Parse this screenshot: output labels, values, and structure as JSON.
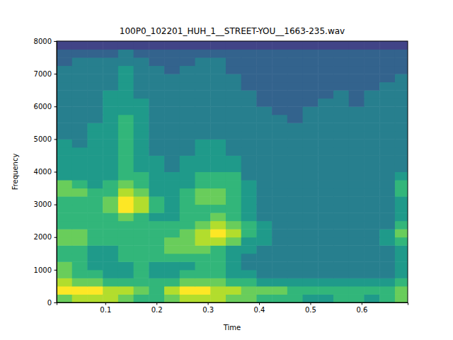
{
  "chart_data": {
    "type": "heatmap",
    "title": "100P0_102201_HUH_1__STREET-YOU__1663-235.wav",
    "x_label": "Time",
    "y_label": "Frequency",
    "xlim": [
      0.005,
      0.69
    ],
    "ylim": [
      0,
      8000
    ],
    "xticks": [
      0.1,
      0.2,
      0.3,
      0.4,
      0.5,
      0.6
    ],
    "yticks": [
      0,
      1000,
      2000,
      3000,
      4000,
      5000,
      6000,
      7000,
      8000
    ],
    "x": [
      0.02,
      0.05,
      0.08,
      0.11,
      0.14,
      0.17,
      0.2,
      0.23,
      0.26,
      0.29,
      0.32,
      0.35,
      0.38,
      0.41,
      0.44,
      0.47,
      0.5,
      0.53,
      0.56,
      0.59,
      0.62,
      0.65,
      0.68
    ],
    "y": [
      125,
      375,
      625,
      875,
      1125,
      1375,
      1625,
      1875,
      2125,
      2375,
      2625,
      2875,
      3125,
      3375,
      3625,
      3875,
      4125,
      4375,
      4625,
      4875,
      5125,
      5375,
      5625,
      5875,
      6125,
      6375,
      6625,
      6875,
      7125,
      7375,
      7625,
      7875
    ],
    "z": [
      [
        7,
        8,
        8,
        8,
        7,
        6,
        6,
        7,
        8,
        8,
        8,
        7,
        7,
        6,
        6,
        6,
        5,
        5,
        6,
        6,
        5,
        6,
        7
      ],
      [
        9,
        9,
        9,
        8,
        8,
        7,
        6,
        8,
        9,
        9,
        8,
        8,
        7,
        7,
        7,
        6,
        6,
        6,
        6,
        6,
        6,
        6,
        7
      ],
      [
        8,
        7,
        7,
        6,
        6,
        6,
        6,
        6,
        7,
        7,
        7,
        6,
        6,
        5,
        5,
        5,
        5,
        5,
        5,
        5,
        5,
        5,
        6
      ],
      [
        7,
        6,
        6,
        5,
        5,
        6,
        5,
        5,
        6,
        6,
        6,
        5,
        5,
        4,
        4,
        4,
        4,
        4,
        4,
        4,
        4,
        4,
        5
      ],
      [
        7,
        6,
        5,
        5,
        5,
        6,
        5,
        5,
        5,
        6,
        6,
        5,
        4,
        4,
        4,
        4,
        4,
        4,
        4,
        4,
        4,
        4,
        5
      ],
      [
        6,
        6,
        5,
        5,
        6,
        6,
        6,
        6,
        6,
        6,
        6,
        5,
        4,
        4,
        4,
        4,
        4,
        4,
        4,
        4,
        4,
        4,
        5
      ],
      [
        6,
        6,
        5,
        5,
        6,
        6,
        6,
        7,
        7,
        7,
        6,
        5,
        5,
        4,
        4,
        4,
        4,
        4,
        4,
        4,
        4,
        4,
        5
      ],
      [
        7,
        7,
        6,
        6,
        6,
        6,
        6,
        7,
        7,
        8,
        8,
        7,
        5,
        5,
        4,
        4,
        4,
        4,
        4,
        4,
        4,
        5,
        6
      ],
      [
        7,
        7,
        6,
        6,
        6,
        6,
        6,
        6,
        7,
        8,
        9,
        8,
        6,
        5,
        4,
        4,
        4,
        4,
        4,
        4,
        4,
        5,
        7
      ],
      [
        6,
        6,
        6,
        6,
        6,
        6,
        6,
        6,
        6,
        7,
        8,
        7,
        6,
        5,
        4,
        4,
        4,
        4,
        4,
        4,
        4,
        4,
        6
      ],
      [
        6,
        6,
        6,
        6,
        7,
        6,
        5,
        5,
        6,
        6,
        7,
        6,
        5,
        4,
        4,
        4,
        4,
        4,
        4,
        4,
        4,
        4,
        5
      ],
      [
        6,
        6,
        6,
        7,
        9,
        8,
        6,
        5,
        6,
        6,
        6,
        6,
        5,
        4,
        4,
        4,
        4,
        4,
        4,
        4,
        4,
        4,
        5
      ],
      [
        6,
        6,
        6,
        7,
        9,
        8,
        6,
        5,
        6,
        7,
        7,
        6,
        5,
        4,
        4,
        4,
        4,
        4,
        4,
        4,
        4,
        4,
        5
      ],
      [
        7,
        7,
        6,
        6,
        8,
        7,
        5,
        5,
        6,
        7,
        7,
        6,
        5,
        4,
        4,
        4,
        4,
        4,
        4,
        4,
        4,
        4,
        6
      ],
      [
        7,
        6,
        5,
        6,
        7,
        6,
        5,
        5,
        5,
        6,
        6,
        6,
        5,
        4,
        4,
        4,
        4,
        4,
        4,
        4,
        4,
        4,
        6
      ],
      [
        5,
        5,
        5,
        5,
        6,
        6,
        5,
        5,
        5,
        6,
        6,
        6,
        4,
        4,
        4,
        4,
        4,
        4,
        4,
        4,
        4,
        4,
        5
      ],
      [
        5,
        5,
        5,
        5,
        6,
        5,
        5,
        4,
        5,
        5,
        5,
        5,
        4,
        4,
        4,
        4,
        4,
        4,
        4,
        4,
        4,
        4,
        4
      ],
      [
        5,
        5,
        5,
        5,
        6,
        5,
        5,
        4,
        5,
        5,
        5,
        5,
        4,
        4,
        4,
        4,
        4,
        4,
        4,
        4,
        4,
        4,
        4
      ],
      [
        5,
        5,
        5,
        5,
        6,
        5,
        4,
        4,
        4,
        5,
        5,
        4,
        4,
        4,
        4,
        4,
        4,
        4,
        4,
        4,
        4,
        4,
        4
      ],
      [
        5,
        4,
        5,
        5,
        6,
        5,
        4,
        4,
        4,
        5,
        5,
        4,
        4,
        4,
        4,
        4,
        4,
        4,
        4,
        4,
        4,
        4,
        4
      ],
      [
        4,
        4,
        5,
        5,
        6,
        5,
        4,
        4,
        4,
        4,
        4,
        4,
        4,
        4,
        4,
        4,
        4,
        4,
        4,
        4,
        4,
        4,
        4
      ],
      [
        4,
        4,
        5,
        5,
        6,
        5,
        4,
        4,
        4,
        4,
        4,
        4,
        4,
        4,
        4,
        4,
        4,
        4,
        4,
        4,
        4,
        4,
        4
      ],
      [
        4,
        4,
        4,
        5,
        6,
        5,
        4,
        4,
        4,
        4,
        4,
        4,
        4,
        4,
        4,
        3,
        4,
        4,
        4,
        4,
        4,
        4,
        4
      ],
      [
        4,
        4,
        4,
        5,
        5,
        5,
        4,
        4,
        4,
        4,
        4,
        4,
        4,
        4,
        3,
        3,
        4,
        4,
        4,
        4,
        4,
        4,
        4
      ],
      [
        4,
        4,
        4,
        5,
        5,
        5,
        4,
        4,
        4,
        4,
        4,
        4,
        4,
        3,
        3,
        3,
        3,
        4,
        4,
        3,
        4,
        4,
        4
      ],
      [
        4,
        4,
        4,
        5,
        5,
        4,
        4,
        4,
        4,
        4,
        4,
        4,
        4,
        3,
        3,
        3,
        3,
        3,
        4,
        3,
        4,
        4,
        4
      ],
      [
        4,
        4,
        4,
        4,
        5,
        4,
        4,
        4,
        4,
        4,
        4,
        4,
        3,
        3,
        3,
        3,
        3,
        3,
        3,
        3,
        3,
        4,
        4
      ],
      [
        4,
        4,
        4,
        4,
        5,
        4,
        4,
        4,
        4,
        4,
        4,
        4,
        3,
        3,
        3,
        3,
        3,
        3,
        3,
        3,
        3,
        3,
        4
      ],
      [
        4,
        4,
        4,
        4,
        5,
        4,
        4,
        3,
        4,
        4,
        4,
        3,
        3,
        3,
        3,
        3,
        3,
        3,
        3,
        3,
        3,
        3,
        3
      ],
      [
        3,
        4,
        4,
        4,
        4,
        4,
        3,
        3,
        3,
        4,
        4,
        3,
        3,
        3,
        3,
        3,
        3,
        3,
        3,
        3,
        3,
        3,
        3
      ],
      [
        3,
        3,
        3,
        3,
        4,
        3,
        3,
        3,
        3,
        3,
        3,
        3,
        3,
        3,
        3,
        3,
        3,
        3,
        3,
        3,
        3,
        3,
        3
      ],
      [
        2,
        2,
        2,
        2,
        2,
        2,
        2,
        2,
        2,
        2,
        2,
        2,
        2,
        2,
        2,
        2,
        2,
        2,
        2,
        2,
        2,
        2,
        2
      ]
    ]
  }
}
